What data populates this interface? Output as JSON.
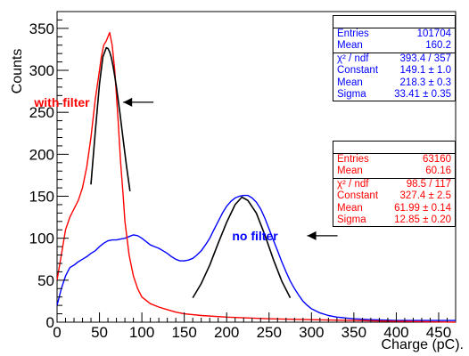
{
  "chart_data": {
    "type": "line",
    "xlabel": "Charge (pC).",
    "ylabel": "Counts",
    "xlim": [
      0,
      470
    ],
    "ylim": [
      0,
      370
    ],
    "xticks": [
      0,
      50,
      100,
      150,
      200,
      250,
      300,
      350,
      400,
      450
    ],
    "yticks": [
      0,
      50,
      100,
      150,
      200,
      250,
      300,
      350
    ],
    "grid": false,
    "series": [
      {
        "color": "#0000ff",
        "x": [
          0,
          5,
          10,
          15,
          20,
          25,
          30,
          35,
          40,
          45,
          50,
          55,
          60,
          65,
          70,
          75,
          80,
          85,
          90,
          95,
          100,
          105,
          110,
          115,
          120,
          125,
          130,
          135,
          140,
          145,
          150,
          155,
          160,
          165,
          170,
          175,
          180,
          185,
          190,
          195,
          200,
          205,
          210,
          215,
          220,
          225,
          230,
          235,
          240,
          245,
          250,
          255,
          260,
          265,
          270,
          275,
          280,
          285,
          290,
          295,
          300,
          310,
          320,
          330,
          340,
          350,
          370,
          400,
          430,
          470
        ],
        "y": [
          20,
          40,
          55,
          65,
          68,
          72,
          75,
          78,
          82,
          85,
          90,
          94,
          97,
          98,
          98,
          99,
          100,
          102,
          104,
          103,
          100,
          96,
          92,
          90,
          88,
          85,
          82,
          78,
          75,
          73,
          73,
          74,
          76,
          80,
          85,
          92,
          100,
          110,
          120,
          130,
          138,
          144,
          148,
          150,
          151,
          151,
          148,
          143,
          135,
          124,
          111,
          98,
          85,
          72,
          60,
          49,
          40,
          32,
          25,
          20,
          16,
          11,
          8,
          6,
          5,
          4,
          3,
          2,
          2,
          2
        ]
      },
      {
        "color": "#ff0000",
        "x": [
          0,
          5,
          10,
          15,
          20,
          25,
          30,
          35,
          40,
          45,
          50,
          52,
          55,
          58,
          60,
          62,
          65,
          68,
          70,
          72,
          75,
          78,
          80,
          85,
          90,
          95,
          100,
          110,
          120,
          130,
          140,
          150,
          170,
          200,
          250,
          300,
          350,
          400,
          470
        ],
        "y": [
          50,
          80,
          110,
          125,
          135,
          145,
          160,
          185,
          220,
          265,
          300,
          315,
          330,
          335,
          340,
          345,
          330,
          300,
          270,
          240,
          190,
          150,
          120,
          80,
          55,
          40,
          30,
          22,
          18,
          15,
          12,
          10,
          8,
          6,
          4,
          3,
          2,
          1,
          0
        ]
      },
      {
        "color": "#000000",
        "x": [
          40,
          45,
          50,
          54,
          58,
          60,
          62,
          64,
          66,
          68,
          70,
          74,
          78,
          82,
          86
        ],
        "y": [
          164,
          226,
          284,
          316,
          327,
          326,
          322,
          315,
          305,
          293,
          280,
          250,
          217,
          185,
          156
        ]
      },
      {
        "color": "#000000",
        "x": [
          160,
          170,
          180,
          190,
          200,
          210,
          218,
          225,
          235,
          245,
          255,
          265,
          275
        ],
        "y": [
          29,
          46,
          68,
          94,
          119,
          140,
          149,
          145,
          130,
          104,
          75,
          49,
          29
        ]
      }
    ],
    "annotations": [
      {
        "text": "with filter",
        "color": "#ff0000",
        "x": 78,
        "y": 262
      },
      {
        "text": "no filter",
        "color": "#0000ff",
        "x": 295,
        "y": 103
      }
    ],
    "stat_boxes": [
      {
        "color": "#0000ff",
        "rows": [
          {
            "name": "Entries",
            "value": "101704"
          },
          {
            "name": "Mean",
            "value": "160.2"
          },
          {
            "name": "χ² / ndf",
            "value": "393.4 / 357"
          },
          {
            "name": "Constant",
            "value": "149.1 ± 1.0"
          },
          {
            "name": "Mean",
            "value": "218.3 ± 0.3"
          },
          {
            "name": "Sigma",
            "value": "33.41 ± 0.35"
          }
        ]
      },
      {
        "color": "#ff0000",
        "rows": [
          {
            "name": "Entries",
            "value": "63160"
          },
          {
            "name": "Mean",
            "value": "60.16"
          },
          {
            "name": "χ² / ndf",
            "value": "98.5 / 117"
          },
          {
            "name": "Constant",
            "value": "327.4 ± 2.5"
          },
          {
            "name": "Mean",
            "value": "61.99 ± 0.14"
          },
          {
            "name": "Sigma",
            "value": "12.85 ± 0.20"
          }
        ]
      }
    ]
  }
}
